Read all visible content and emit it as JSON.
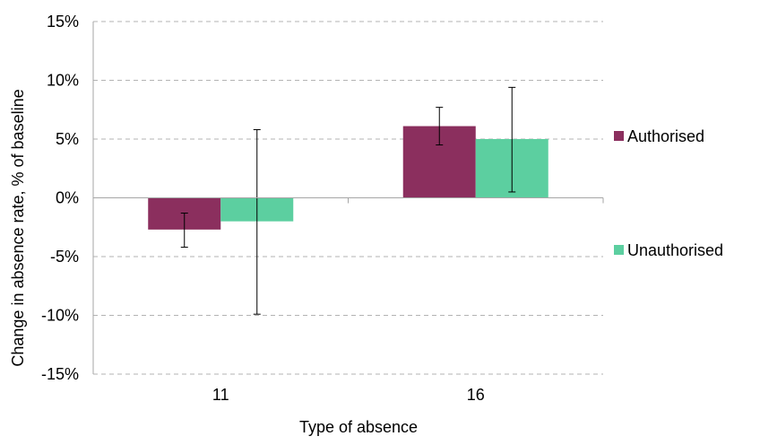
{
  "chart_data": {
    "type": "bar",
    "title": "",
    "xlabel": "Type of absence",
    "ylabel": "Change in absence rate, % of baseline",
    "categories": [
      "11",
      "16"
    ],
    "ylim": [
      -15,
      15
    ],
    "yticks": [
      15,
      10,
      5,
      0,
      -5,
      -10,
      -15
    ],
    "ytick_labels": [
      "15%",
      "10%",
      "5%",
      "0%",
      "-5%",
      "-10%",
      "-15%"
    ],
    "grid": true,
    "legend_position": "right",
    "series": [
      {
        "name": "Authorised",
        "color": "#8B2F5E",
        "values": [
          -2.7,
          6.1
        ],
        "error_low": [
          -4.2,
          4.5
        ],
        "error_high": [
          -1.3,
          7.7
        ]
      },
      {
        "name": "Unauthorised",
        "color": "#5CCFA0",
        "values": [
          -2.0,
          5.0
        ],
        "error_low": [
          -9.9,
          0.5
        ],
        "error_high": [
          5.8,
          9.4
        ]
      }
    ]
  }
}
